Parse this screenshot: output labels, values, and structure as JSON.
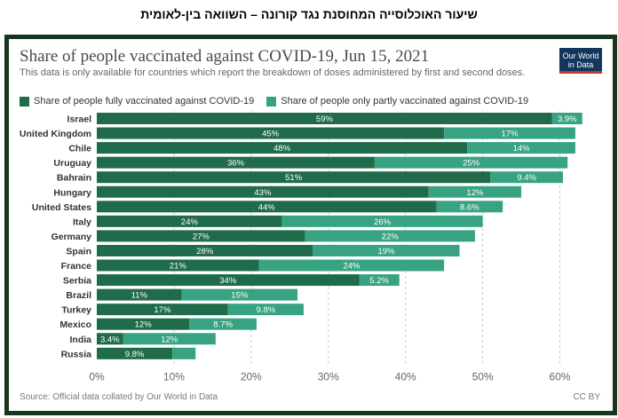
{
  "header": {
    "title": "שיעור האוכלוסייה המחוסנת נגד קורונה – השוואה בין-לאומית"
  },
  "logo": {
    "line1": "Our World",
    "line2": "in Data"
  },
  "footer": {
    "source": "Source: Official data collated by Our World in Data",
    "license": "CC BY"
  },
  "colors": {
    "fully": "#1f6b4a",
    "partly": "#38a382",
    "frame": "#17361f",
    "logo_bg": "#12375e"
  },
  "chart_data": {
    "type": "bar",
    "orientation": "horizontal",
    "stacked": true,
    "title": "Share of people vaccinated against COVID-19, Jun 15, 2021",
    "subtitle": "This data is only available for countries which report the breakdown of doses administered by first and second doses.",
    "categories": [
      "Israel",
      "United Kingdom",
      "Chile",
      "Uruguay",
      "Bahrain",
      "Hungary",
      "United States",
      "Italy",
      "Germany",
      "Spain",
      "France",
      "Serbia",
      "Brazil",
      "Turkey",
      "Mexico",
      "India",
      "Russia"
    ],
    "series": [
      {
        "name": "Share of people fully vaccinated against COVID-19",
        "color": "#1f6b4a",
        "values": [
          59,
          45,
          48,
          36,
          51,
          43,
          44,
          24,
          27,
          28,
          21,
          34,
          11,
          17,
          12,
          3.4,
          9.8
        ],
        "labels": [
          "59%",
          "45%",
          "48%",
          "36%",
          "51%",
          "43%",
          "44%",
          "24%",
          "27%",
          "28%",
          "21%",
          "34%",
          "11%",
          "17%",
          "12%",
          "3.4%",
          "9.8%"
        ]
      },
      {
        "name": "Share of people only partly vaccinated against COVID-19",
        "color": "#38a382",
        "values": [
          3.9,
          17,
          14,
          25,
          9.4,
          12,
          8.6,
          26,
          22,
          19,
          24,
          5.2,
          15,
          9.8,
          8.7,
          12,
          3.0
        ],
        "labels": [
          "3.9%",
          "17%",
          "14%",
          "25%",
          "9.4%",
          "12%",
          "8.6%",
          "26%",
          "22%",
          "19%",
          "24%",
          "5.2%",
          "15%",
          "9.8%",
          "8.7%",
          "12%",
          ""
        ]
      }
    ],
    "xlim": [
      0,
      65
    ],
    "xticks": [
      0,
      10,
      20,
      30,
      40,
      50,
      60
    ],
    "xtick_labels": [
      "0%",
      "10%",
      "20%",
      "30%",
      "40%",
      "50%",
      "60%"
    ],
    "grid": "vertical-dashed",
    "legend_position": "top-left"
  }
}
